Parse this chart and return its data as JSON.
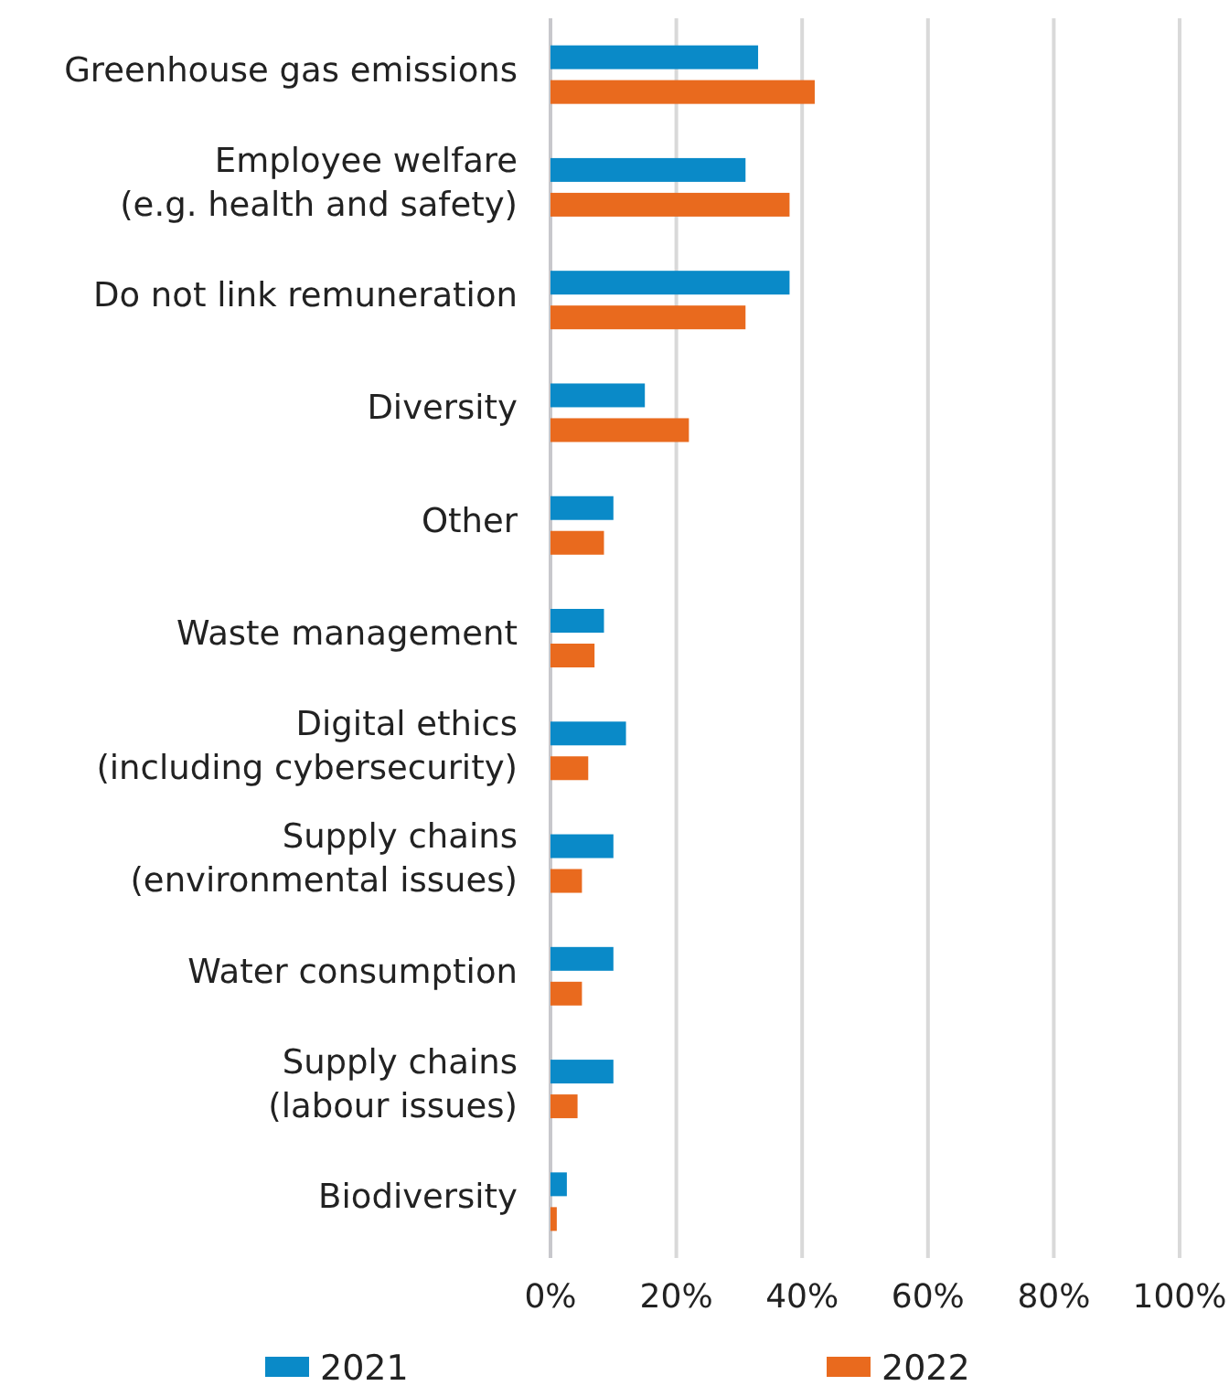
{
  "chart_data": {
    "type": "bar",
    "orientation": "horizontal",
    "categories": [
      "Greenhouse gas emissions",
      "Employee welfare\n(e.g. health and safety)",
      "Do not link remuneration",
      "Diversity",
      "Other",
      "Waste management",
      "Digital ethics\n(including cybersecurity)",
      "Supply chains\n(environmental issues)",
      "Water consumption",
      "Supply chains\n(labour issues)",
      "Biodiversity"
    ],
    "series": [
      {
        "name": "2021",
        "color": "#0a8ac8",
        "values": [
          33,
          31,
          38,
          15,
          10,
          8.5,
          12,
          10,
          10,
          10,
          2.6
        ]
      },
      {
        "name": "2022",
        "color": "#e96a1e",
        "values": [
          42,
          38,
          31,
          22,
          8.5,
          7,
          6,
          5,
          5,
          4.3,
          1
        ]
      }
    ],
    "xlim": [
      0,
      100
    ],
    "xticks": [
      {
        "value": 0,
        "label": "0%"
      },
      {
        "value": 20,
        "label": "20%"
      },
      {
        "value": 40,
        "label": "40%"
      },
      {
        "value": 60,
        "label": "60%"
      },
      {
        "value": 80,
        "label": "80%"
      },
      {
        "value": 100,
        "label": "100%"
      }
    ],
    "grid": "x",
    "legend": "bottom"
  }
}
